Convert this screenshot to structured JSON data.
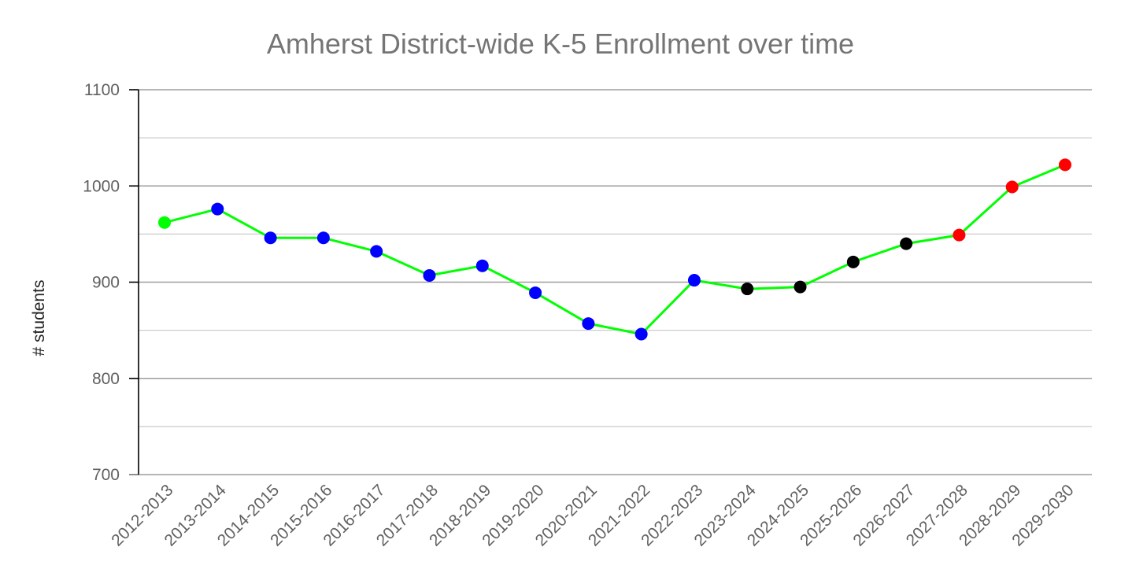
{
  "chart_data": {
    "type": "line",
    "title": "Amherst District-wide K-5 Enrollment over time",
    "xlabel": "",
    "ylabel": "# students",
    "ylim": [
      700,
      1100
    ],
    "y_ticks": [
      "700",
      "800",
      "900",
      "1000",
      "1100"
    ],
    "y_tick_values": [
      700,
      800,
      900,
      1000,
      1100
    ],
    "grid": true,
    "minor_grid": true,
    "legend": "none",
    "categories": [
      "2012-2013",
      "2013-2014",
      "2014-2015",
      "2015-2016",
      "2016-2017",
      "2017-2018",
      "2018-2019",
      "2019-2020",
      "2020-2021",
      "2021-2022",
      "2022-2023",
      "2023-2024",
      "2024-2025",
      "2025-2026",
      "2026-2027",
      "2027-2028",
      "2028-2029",
      "2029-2030"
    ],
    "series": [
      {
        "values": [
          962,
          976,
          946,
          946,
          932,
          907,
          917,
          889,
          857,
          846,
          902,
          893,
          895,
          921,
          940,
          949,
          999,
          1022
        ],
        "line_color": "#00ff00",
        "point_colors": [
          "#00ff00",
          "#0000ff",
          "#0000ff",
          "#0000ff",
          "#0000ff",
          "#0000ff",
          "#0000ff",
          "#0000ff",
          "#0000ff",
          "#0000ff",
          "#0000ff",
          "#000000",
          "#000000",
          "#000000",
          "#000000",
          "#ff0000",
          "#ff0000",
          "#ff0000"
        ]
      }
    ]
  },
  "colors": {
    "title": "#757575",
    "tick_label": "#616161",
    "axis_label": "#212121",
    "major_grid": "#9e9e9e",
    "minor_grid": "#cccccc",
    "axis": "#000000"
  }
}
